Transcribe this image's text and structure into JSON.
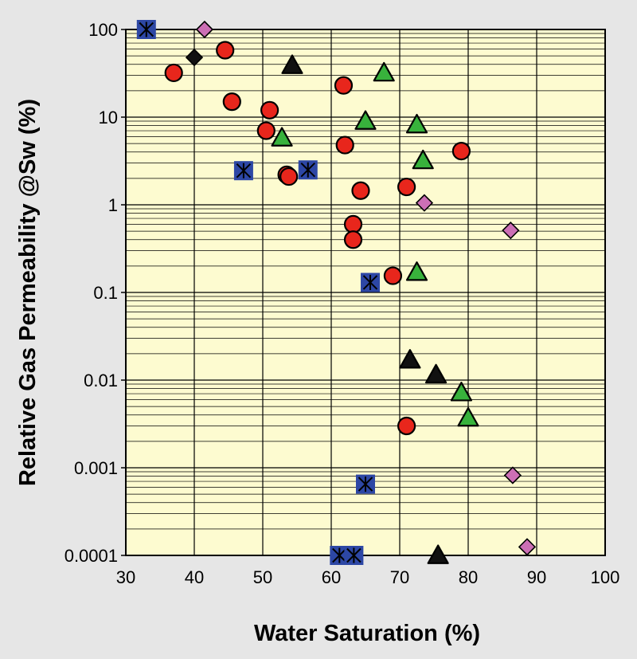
{
  "chart_data": {
    "type": "scatter",
    "title": "",
    "xlabel": "Water Saturation (%)",
    "ylabel": "Relative Gas Permeability @Sw (%)",
    "xlim": [
      30,
      100
    ],
    "ylim": [
      0.0001,
      100
    ],
    "yscale": "log",
    "grid": true,
    "legend": "none",
    "plot_background": "#fdfbd0",
    "page_background": "#e6e6e6",
    "x_ticks": [
      "30",
      "40",
      "50",
      "60",
      "70",
      "80",
      "90",
      "100"
    ],
    "y_ticks": [
      "100",
      "10",
      "1",
      "0.1",
      "0.01",
      "0.001",
      "0.0001"
    ],
    "series": [
      {
        "marker": "circle",
        "color": "#e8261c",
        "points": [
          [
            37,
            32
          ],
          [
            44.5,
            58
          ],
          [
            45.5,
            15
          ],
          [
            51,
            12
          ],
          [
            50.5,
            7
          ],
          [
            53.5,
            2.2
          ],
          [
            53.8,
            2.1
          ],
          [
            61.8,
            23
          ],
          [
            62,
            4.8
          ],
          [
            64.3,
            1.45
          ],
          [
            63.2,
            0.6
          ],
          [
            63.2,
            0.4
          ],
          [
            69,
            0.155
          ],
          [
            71,
            1.6
          ],
          [
            79,
            4.1
          ],
          [
            71,
            0.003
          ]
        ]
      },
      {
        "marker": "triangle",
        "color": "#38b23c",
        "points": [
          [
            52.8,
            5.8
          ],
          [
            65,
            9
          ],
          [
            67.7,
            32
          ],
          [
            72.5,
            8.2
          ],
          [
            73.4,
            3.2
          ],
          [
            72.5,
            0.17
          ],
          [
            79,
            0.0072
          ],
          [
            80,
            0.0037
          ]
        ]
      },
      {
        "marker": "triangle",
        "color": "#111111",
        "points": [
          [
            54.3,
            39
          ],
          [
            71.5,
            0.017
          ],
          [
            75.3,
            0.0115
          ],
          [
            75.6,
            0.0001
          ]
        ]
      },
      {
        "marker": "diamond",
        "color": "#111111",
        "points": [
          [
            40,
            48
          ]
        ]
      },
      {
        "marker": "diamond",
        "color": "#cc6fb5",
        "points": [
          [
            41.5,
            100
          ],
          [
            73.6,
            1.05
          ],
          [
            86.2,
            0.51
          ],
          [
            86.5,
            0.00082
          ],
          [
            88.6,
            0.000125
          ]
        ]
      },
      {
        "marker": "square-asterisk",
        "color": "#2d47a5",
        "points": [
          [
            33,
            100
          ],
          [
            47.2,
            2.45
          ],
          [
            56.6,
            2.5
          ],
          [
            65.7,
            0.13
          ],
          [
            65,
            0.00065
          ],
          [
            61.2,
            0.0001
          ],
          [
            63.3,
            0.0001
          ]
        ]
      }
    ]
  }
}
